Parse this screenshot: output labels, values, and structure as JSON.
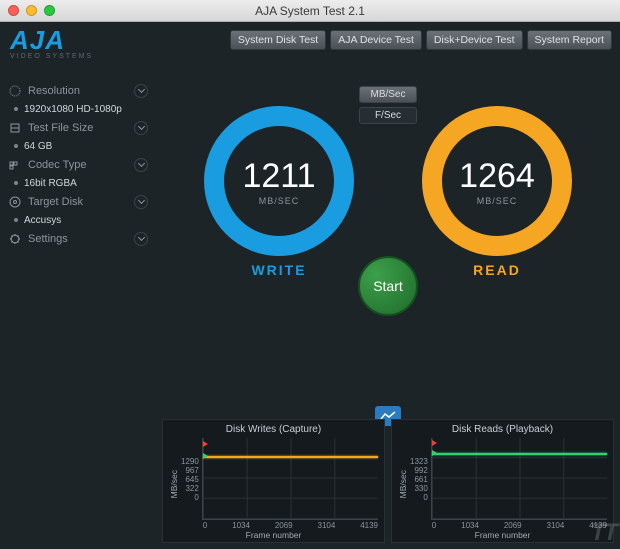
{
  "window": {
    "title": "AJA System Test 2.1",
    "traffic": {
      "close": "#ff5f57",
      "min": "#ffbd2e",
      "max": "#28c940"
    }
  },
  "logo": {
    "brand": "AJA",
    "brand_color": "#1a9de0",
    "tag": "VIDEO SYSTEMS"
  },
  "tabs": [
    {
      "label": "System Disk Test"
    },
    {
      "label": "AJA Device Test"
    },
    {
      "label": "Disk+Device Test"
    },
    {
      "label": "System Report"
    }
  ],
  "sidebar": [
    {
      "label": "Resolution",
      "value": "1920x1080 HD-1080p"
    },
    {
      "label": "Test File Size",
      "value": "64 GB"
    },
    {
      "label": "Codec Type",
      "value": "16bit RGBA"
    },
    {
      "label": "Target Disk",
      "value": "Accusys"
    },
    {
      "label": "Settings",
      "value": null
    }
  ],
  "toggle": {
    "options": [
      "MB/Sec",
      "F/Sec"
    ],
    "active": 0
  },
  "gauges": {
    "write": {
      "value": "1211",
      "unit": "MB/SEC",
      "label": "WRITE",
      "ring": "#1a9de0",
      "label_color": "#1a9de0"
    },
    "read": {
      "value": "1264",
      "unit": "MB/SEC",
      "label": "READ",
      "ring": "#f5a623",
      "label_color": "#f5a623"
    }
  },
  "start": {
    "label": "Start",
    "bg": "#2a8a38"
  },
  "charts": {
    "ylabel": "MB/sec",
    "xlabel": "Frame number",
    "writes": {
      "title": "Disk Writes (Capture)",
      "yticks": [
        "1290",
        "967",
        "645",
        "322",
        "0"
      ],
      "xticks": [
        "0",
        "1034",
        "2069",
        "3104",
        "4139"
      ],
      "trace_color": "#f5a623",
      "trace_level_pct": 22,
      "markers": [
        {
          "pct": 8,
          "color": "#ff3b30"
        },
        {
          "pct": 22,
          "color": "#2dd36f"
        }
      ]
    },
    "reads": {
      "title": "Disk Reads (Playback)",
      "yticks": [
        "1323",
        "992",
        "661",
        "330",
        "0"
      ],
      "xticks": [
        "0",
        "1034",
        "2069",
        "3104",
        "4139"
      ],
      "trace_color": "#2dd36f",
      "trace_level_pct": 18,
      "markers": [
        {
          "pct": 6,
          "color": "#ff3b30"
        },
        {
          "pct": 18,
          "color": "#2dd36f"
        }
      ]
    }
  },
  "watermark": "TT"
}
